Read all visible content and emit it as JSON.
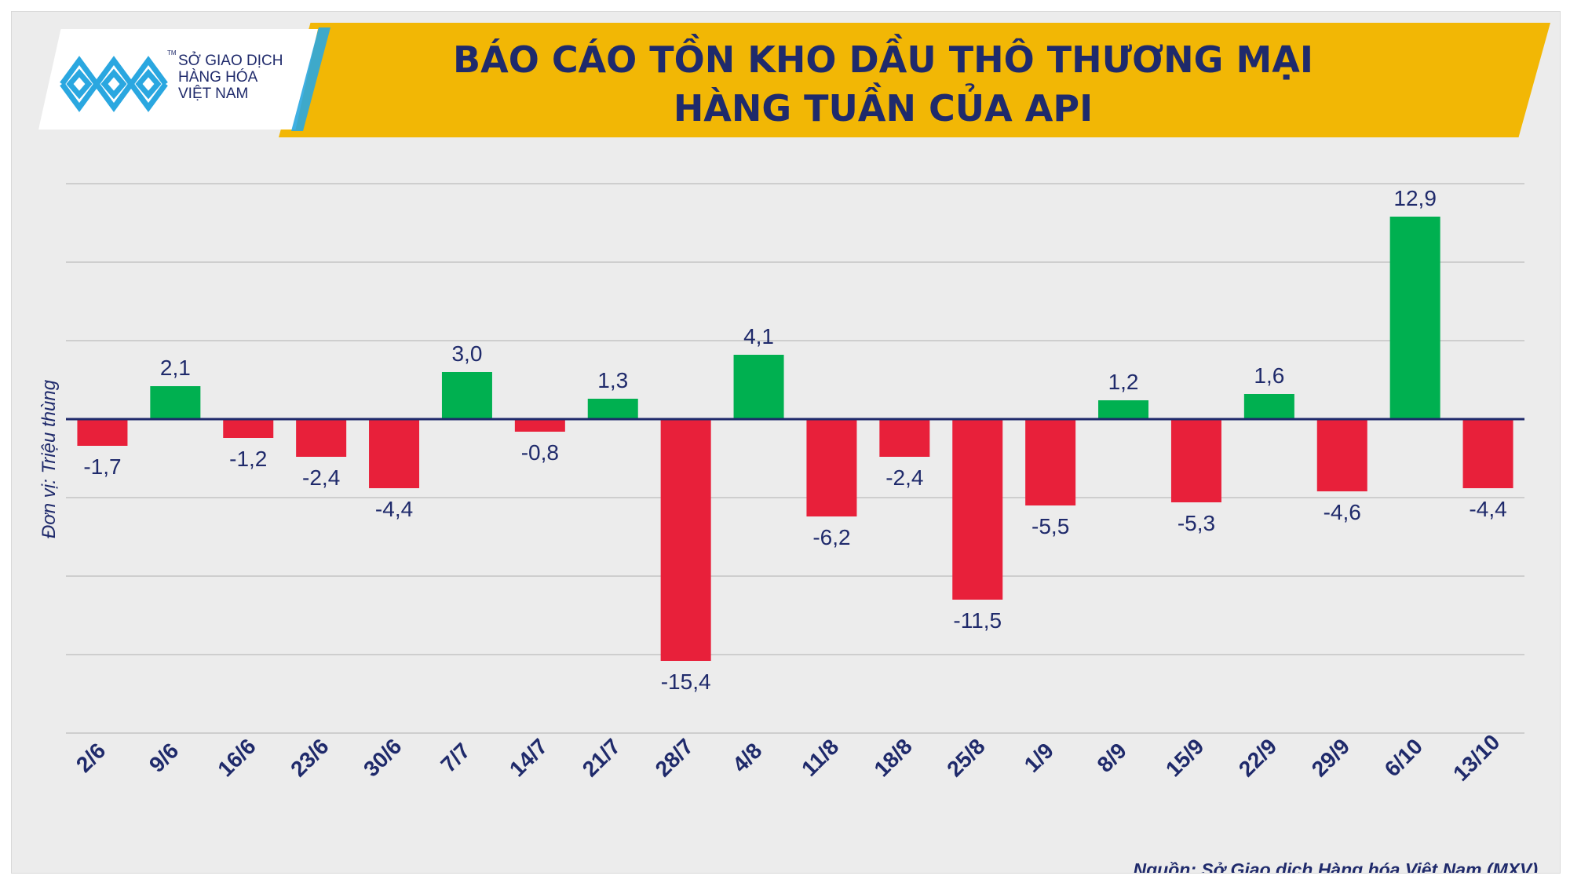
{
  "header": {
    "logo_lines": [
      "SỞ GIAO DỊCH",
      "HÀNG HÓA",
      "VIỆT NAM"
    ],
    "logo_tm": "TM"
  },
  "footer": {
    "source": "Nguồn: Sở Giao dịch Hàng hóa Việt Nam (MXV)"
  },
  "colors": {
    "positive": "#00b050",
    "negative": "#e8203a",
    "banner": "#f2b705",
    "text": "#1f2a6b",
    "logo_blue": "#2aa7e0"
  },
  "chart_data": {
    "type": "bar",
    "title": "BÁO CÁO TỒN KHO DẦU THÔ THƯƠNG MẠI HÀNG TUẦN CỦA API",
    "title_lines": [
      "BÁO CÁO TỒN KHO DẦU THÔ THƯƠNG MẠI",
      "HÀNG TUẦN CỦA API"
    ],
    "ylabel": "Đơn vị: Triệu thùng",
    "xlabel": "",
    "categories": [
      "2/6",
      "9/6",
      "16/6",
      "23/6",
      "30/6",
      "7/7",
      "14/7",
      "21/7",
      "28/7",
      "4/8",
      "11/8",
      "18/8",
      "25/8",
      "1/9",
      "8/9",
      "15/9",
      "22/9",
      "29/9",
      "6/10",
      "13/10"
    ],
    "values": [
      -1.7,
      2.1,
      -1.2,
      -2.4,
      -4.4,
      3.0,
      -0.8,
      1.3,
      -15.4,
      4.1,
      -6.2,
      -2.4,
      -11.5,
      -5.5,
      1.2,
      -5.3,
      1.6,
      -4.6,
      12.9,
      -4.4
    ],
    "value_labels": [
      "-1,7",
      "2,1",
      "-1,2",
      "-2,4",
      "-4,4",
      "3,0",
      "-0,8",
      "1,3",
      "-15,4",
      "4,1",
      "-6,2",
      "-2,4",
      "-11,5",
      "-5,5",
      "1,2",
      "-5,3",
      "1,6",
      "-4,6",
      "12,9",
      "-4,4"
    ],
    "ylim": [
      -20,
      15
    ],
    "gridlines": [
      15,
      10,
      5,
      0,
      -5,
      -10,
      -15,
      -20
    ],
    "grid": true,
    "legend": "none"
  }
}
